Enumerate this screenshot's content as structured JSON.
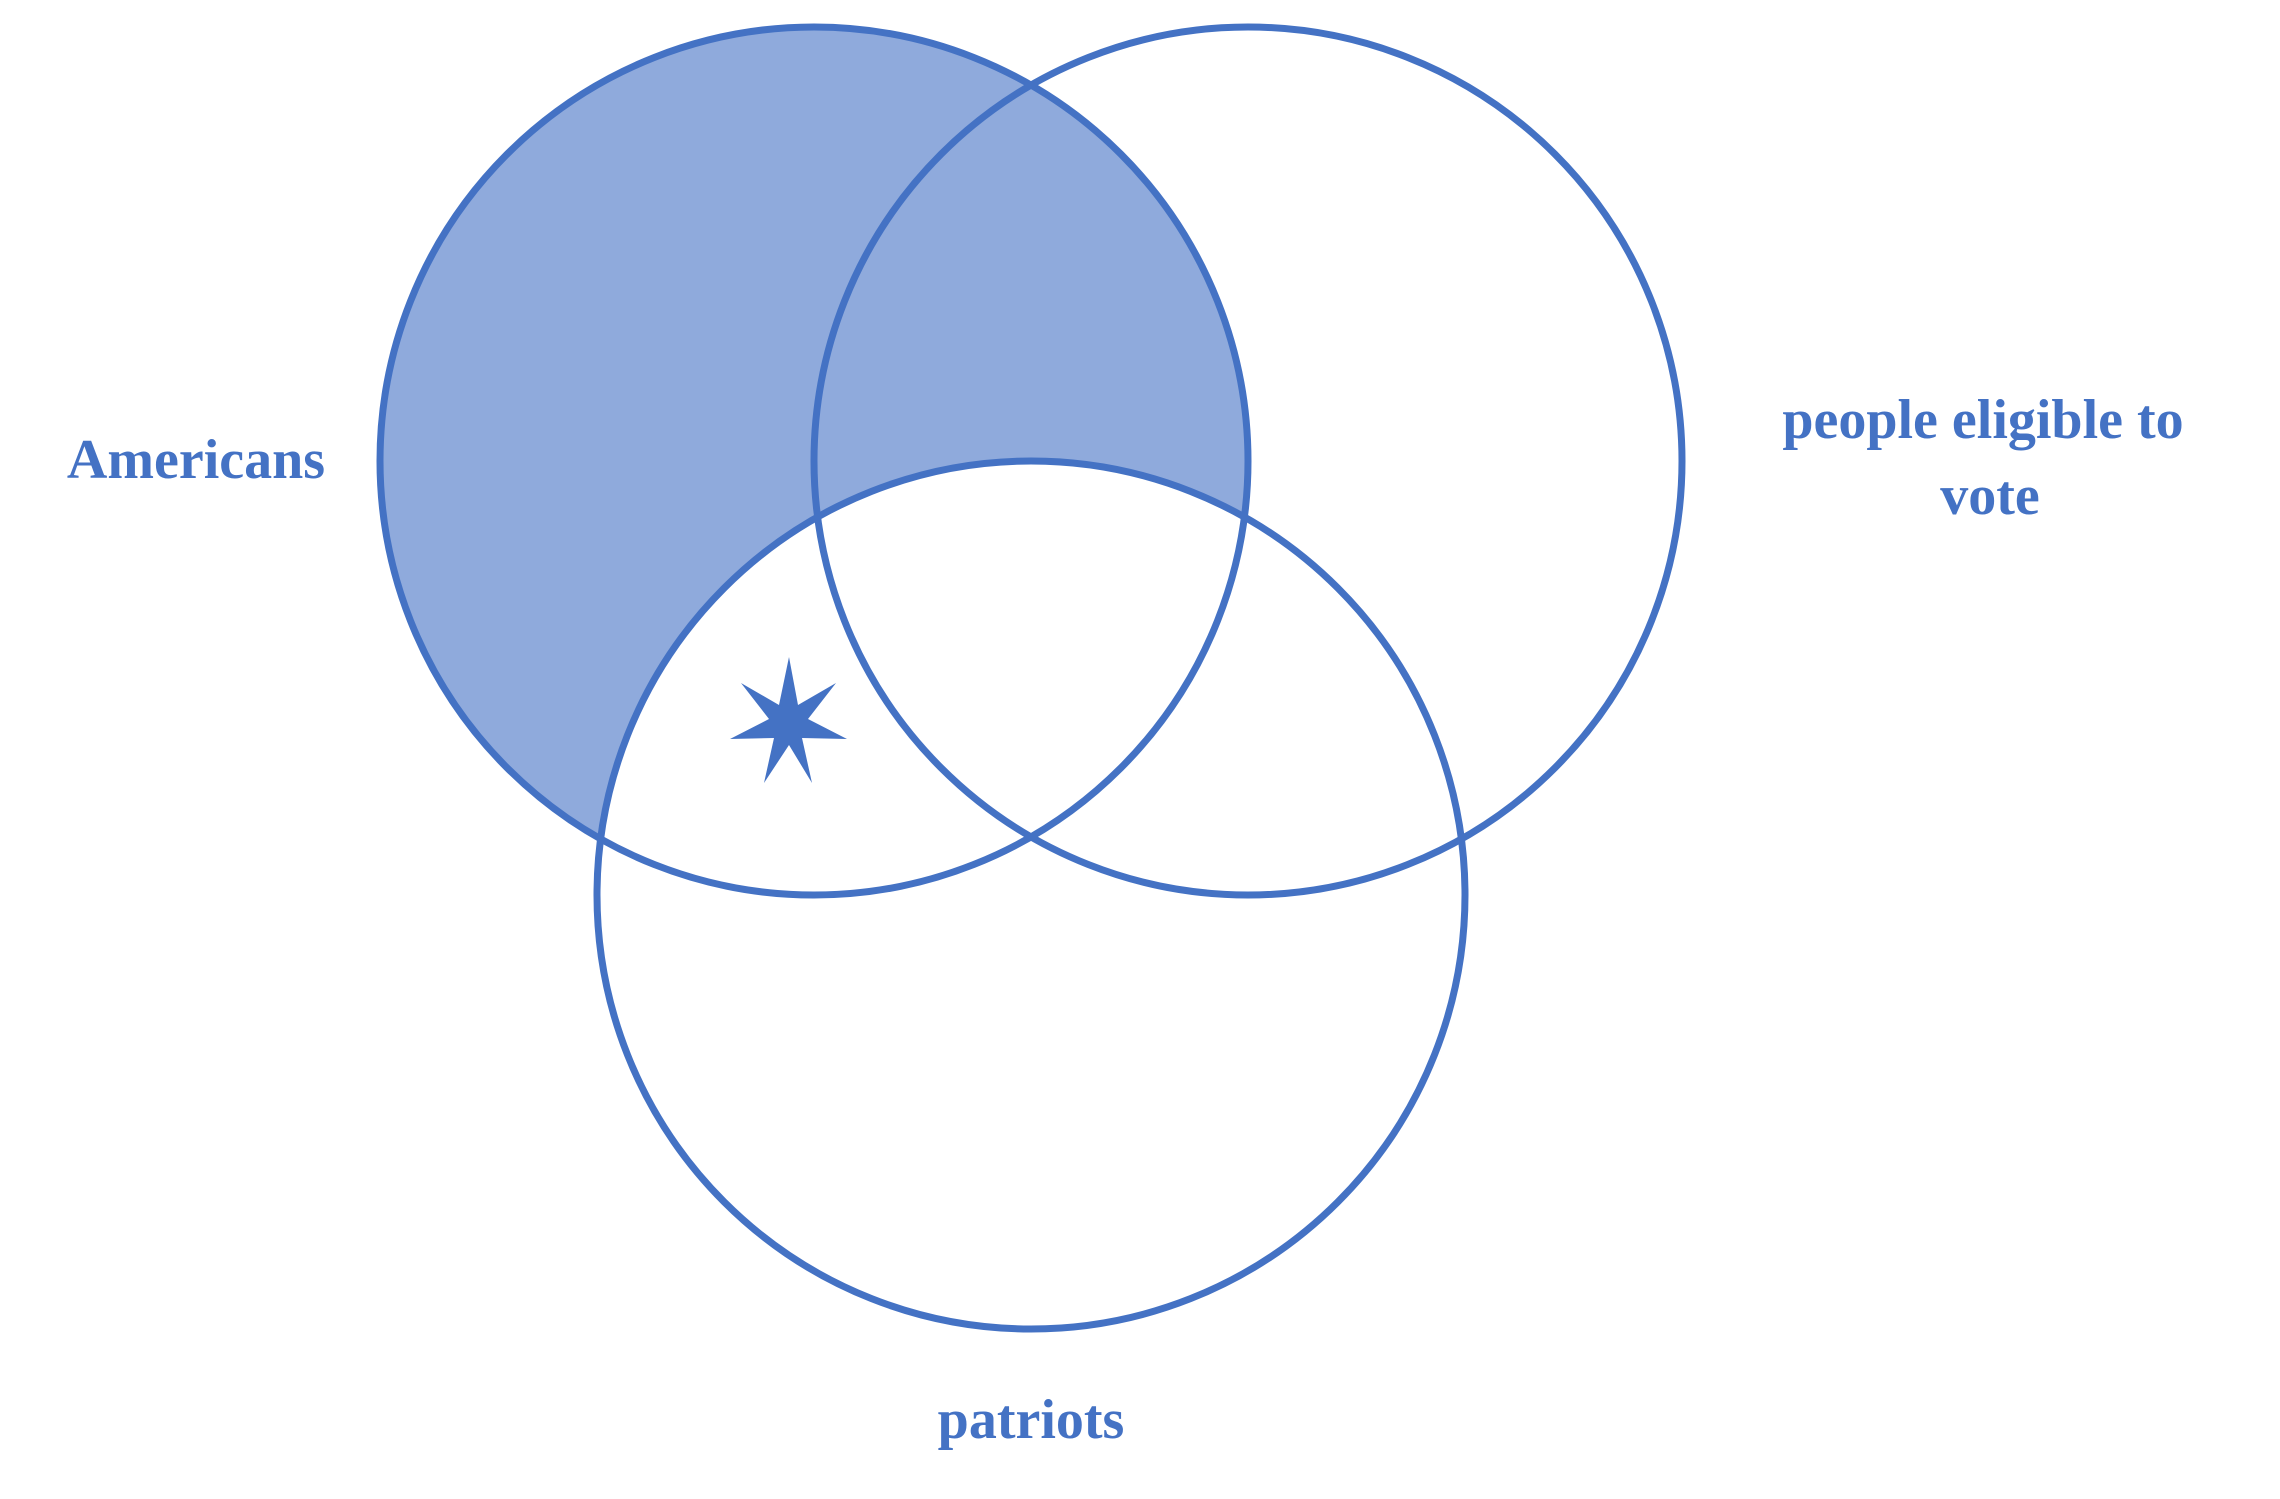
{
  "diagram": {
    "type": "venn",
    "colors": {
      "stroke": "#4472C4",
      "shade": "#8FAADC",
      "text": "#4472C4",
      "marker": "#4472C4"
    },
    "sets": [
      {
        "id": "A",
        "label_lines": [
          "Americans"
        ]
      },
      {
        "id": "B",
        "label_lines": [
          "people eligible to",
          "vote"
        ]
      },
      {
        "id": "C",
        "label_lines": [
          "patriots"
        ]
      }
    ],
    "shaded_regions": [
      "A-only",
      "A∩B-only"
    ],
    "marked_regions": [
      {
        "region": "A∩C-only",
        "marker": "star-icon"
      }
    ]
  }
}
